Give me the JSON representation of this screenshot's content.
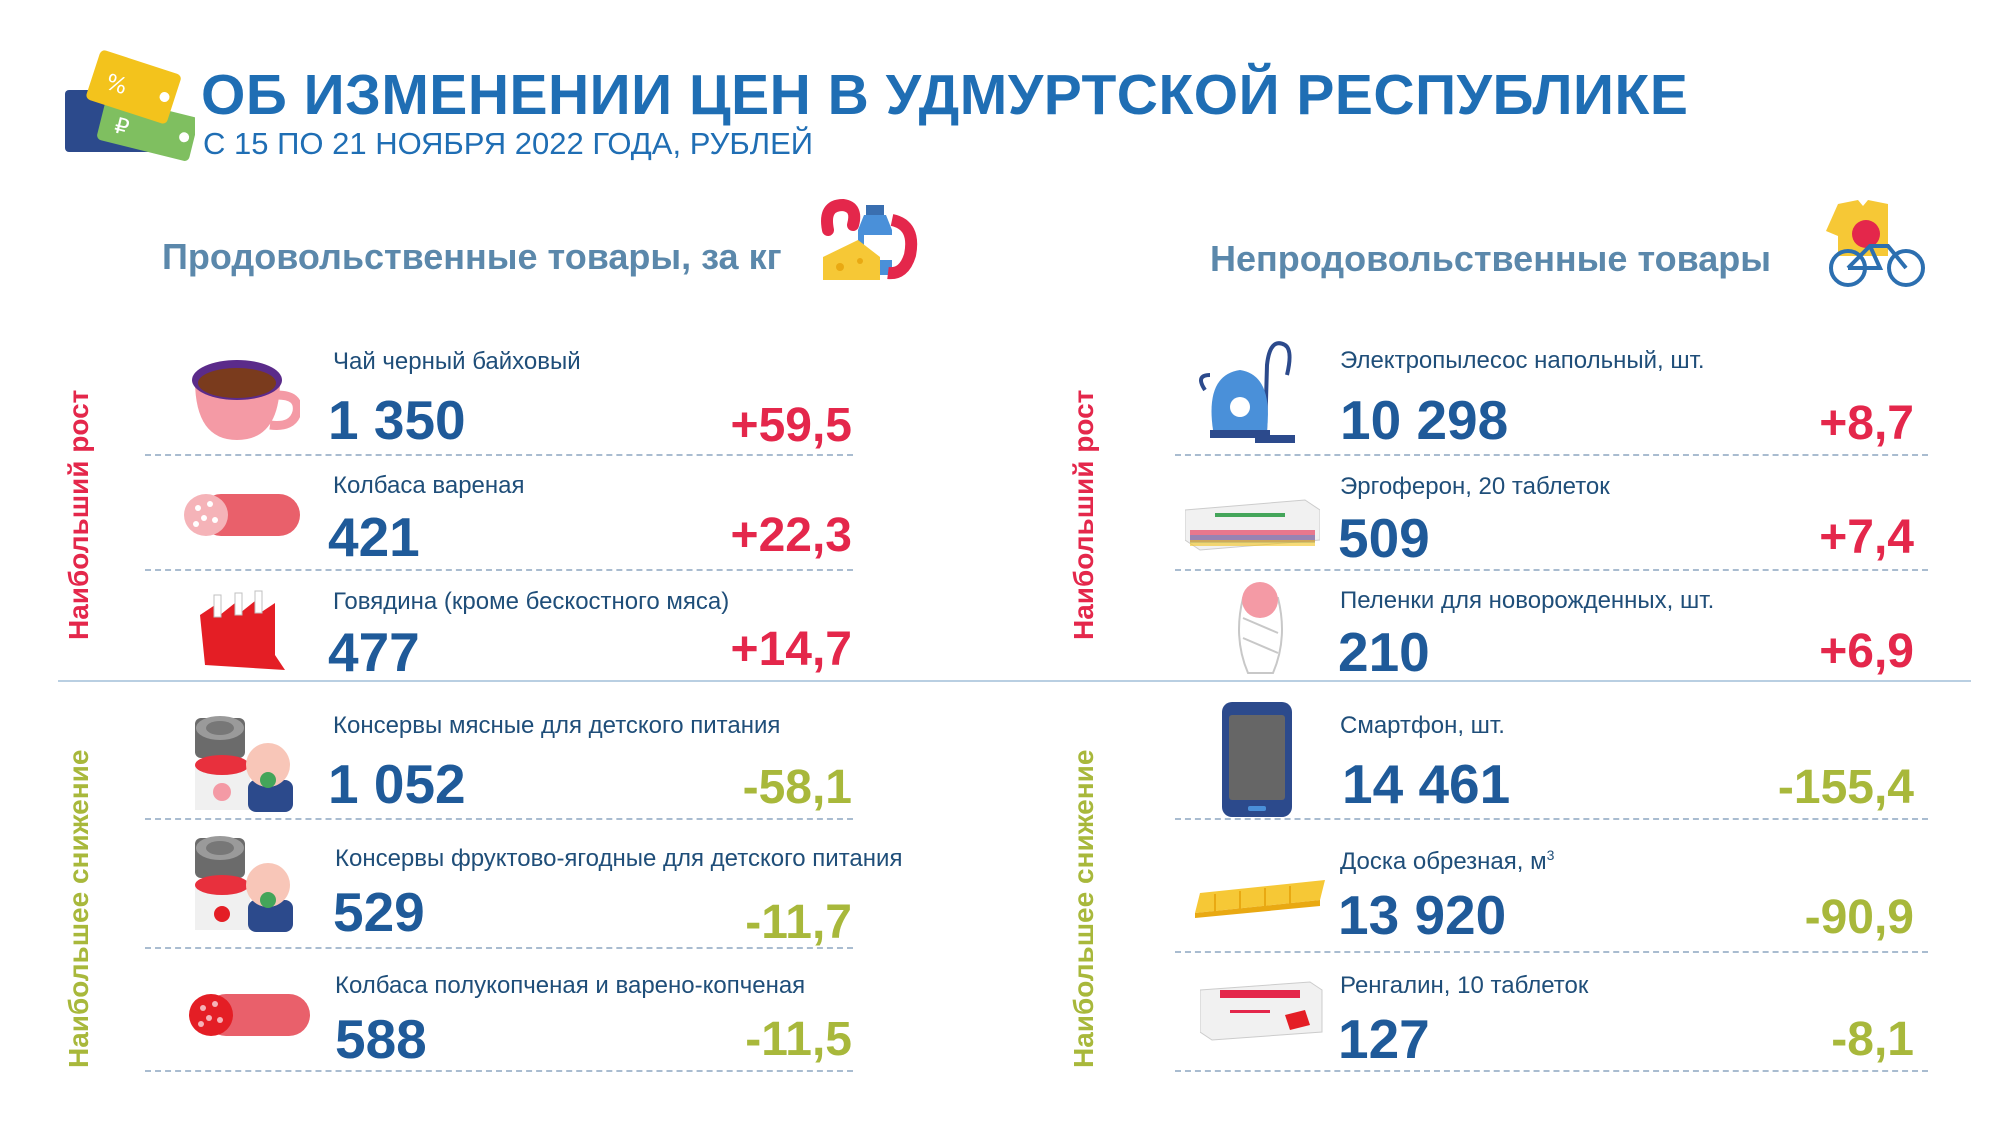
{
  "title": "ОБ ИЗМЕНЕНИИ ЦЕН В УДМУРТСКОЙ РЕСПУБЛИКЕ",
  "subtitle": "С 15 ПО 21 НОЯБРЯ 2022 ГОДА, РУБЛЕЙ",
  "labels": {
    "rise": "Наибольший рост",
    "fall": "Наибольшее снижение"
  },
  "colors": {
    "title": "#1f6eb4",
    "rise": "#e4274b",
    "fall": "#a8b83b",
    "price": "#1f5a99"
  },
  "food": {
    "title": "Продовольственные товары, за кг",
    "rise": [
      {
        "name": "Чай черный байховый",
        "price": "1 350",
        "change": "+59,5",
        "icon": "tea-cup-icon"
      },
      {
        "name": "Колбаса вареная",
        "price": "421",
        "change": "+22,3",
        "icon": "boiled-sausage-icon"
      },
      {
        "name": "Говядина (кроме бескостного мяса)",
        "price": "477",
        "change": "+14,7",
        "icon": "beef-icon"
      }
    ],
    "fall": [
      {
        "name": "Консервы мясные для детского питания",
        "price": "1 052",
        "change": "-58,1",
        "icon": "baby-meat-can-icon"
      },
      {
        "name": "Консервы фруктово-ягодные для детского питания",
        "price": "529",
        "change": "-11,7",
        "icon": "baby-fruit-can-icon"
      },
      {
        "name": "Колбаса полукопченая и варено-копченая",
        "price": "588",
        "change": "-11,5",
        "icon": "smoked-sausage-icon"
      }
    ]
  },
  "nonfood": {
    "title": "Непродовольственные товары",
    "rise": [
      {
        "name": "Электропылесос напольный, шт.",
        "price": "10 298",
        "change": "+8,7",
        "icon": "vacuum-cleaner-icon"
      },
      {
        "name": "Эргоферон, 20 таблеток",
        "price": "509",
        "change": "+7,4",
        "icon": "medicine-box-icon"
      },
      {
        "name": "Пеленки для новорожденных, шт.",
        "price": "210",
        "change": "+6,9",
        "icon": "swaddle-icon"
      }
    ],
    "fall": [
      {
        "name": "Смартфон, шт.",
        "price": "14 461",
        "change": "-155,4",
        "icon": "smartphone-icon"
      },
      {
        "name": "Доска обрезная, м",
        "unit_sup": "3",
        "price": "13 920",
        "change": "-90,9",
        "icon": "board-icon"
      },
      {
        "name": "Ренгалин, 10 таблеток",
        "price": "127",
        "change": "-8,1",
        "icon": "medicine-box-2-icon"
      }
    ]
  }
}
